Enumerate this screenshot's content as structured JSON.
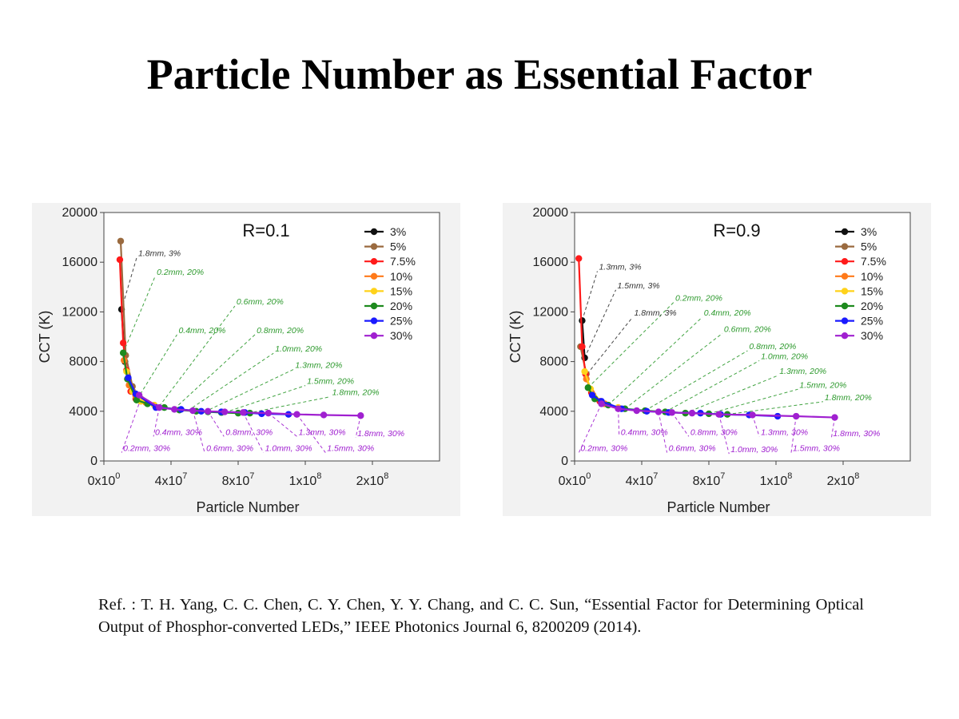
{
  "slide": {
    "title": "Particle Number as Essential Factor",
    "reference": "Ref. : T. H. Yang, C. C. Chen, C. Y. Chen, Y. Y. Chang, and C. C. Sun, “Essential Factor for Determining Optical Output of Phosphor-converted LEDs,” IEEE Photonics Journal 6, 8200209 (2014)."
  },
  "colors": {
    "3%": "#111111",
    "5%": "#9a6a3f",
    "7.5%": "#ff1a1a",
    "10%": "#ff7a1a",
    "15%": "#ffd21a",
    "20%": "#1e8a1e",
    "25%": "#1a1aff",
    "30%": "#a020d0",
    "label_black": "#333333",
    "label_green": "#2e9a2e",
    "label_purple": "#a020d0"
  },
  "chart_data": [
    {
      "type": "line",
      "title": "R=0.1",
      "xlabel": "Particle Number",
      "ylabel": "CCT (K)",
      "xlim": [
        0,
        200000000
      ],
      "ylim": [
        0,
        20000
      ],
      "xticks": [
        {
          "value": 0,
          "base": "0x10",
          "exp": "0"
        },
        {
          "value": 40000000,
          "base": "4x10",
          "exp": "7"
        },
        {
          "value": 80000000,
          "base": "8x10",
          "exp": "7"
        },
        {
          "value": 120000000,
          "base": "1x10",
          "exp": "8"
        },
        {
          "value": 160000000,
          "base": "2x10",
          "exp": "8"
        }
      ],
      "yticks": [
        "0",
        "4000",
        "8000",
        "12000",
        "16000",
        "20000"
      ],
      "legend_position": "top-right",
      "series": [
        {
          "name": "3%",
          "points": [
            [
              10500000,
              12200
            ],
            [
              12500000,
              8000
            ]
          ]
        },
        {
          "name": "5%",
          "points": [
            [
              10000000,
              17700
            ],
            [
              13000000,
              8500
            ],
            [
              17000000,
              6000
            ],
            [
              22000000,
              5000
            ]
          ]
        },
        {
          "name": "7.5%",
          "points": [
            [
              9500000,
              16200
            ],
            [
              11500000,
              9500
            ],
            [
              13500000,
              7300
            ],
            [
              16000000,
              5600
            ],
            [
              19000000,
              5000
            ]
          ]
        },
        {
          "name": "10%",
          "points": [
            [
              12000000,
              8100
            ],
            [
              15000000,
              6100
            ],
            [
              19000000,
              5200
            ],
            [
              25000000,
              4700
            ]
          ]
        },
        {
          "name": "15%",
          "points": [
            [
              13500000,
              7200
            ],
            [
              17000000,
              5600
            ],
            [
              22000000,
              4800
            ],
            [
              30000000,
              4500
            ]
          ]
        },
        {
          "name": "20%",
          "points": [
            [
              11500000,
              8700
            ],
            [
              14000000,
              6600
            ],
            [
              19500000,
              4900
            ],
            [
              26000000,
              4600
            ],
            [
              36000000,
              4300
            ],
            [
              45000000,
              4100
            ],
            [
              55000000,
              4000
            ],
            [
              62000000,
              3950
            ],
            [
              70000000,
              3900
            ],
            [
              80000000,
              3850
            ],
            [
              87000000,
              3850
            ]
          ]
        },
        {
          "name": "25%",
          "points": [
            [
              14500000,
              6700
            ],
            [
              19000000,
              5400
            ],
            [
              31000000,
              4300
            ],
            [
              46000000,
              4150
            ],
            [
              58000000,
              4000
            ],
            [
              70000000,
              3950
            ],
            [
              84000000,
              3900
            ],
            [
              94000000,
              3800
            ],
            [
              110000000,
              3750
            ]
          ]
        },
        {
          "name": "30%",
          "points": [
            [
              21000000,
              5300
            ],
            [
              33000000,
              4300
            ],
            [
              42000000,
              4150
            ],
            [
              53000000,
              4050
            ],
            [
              62000000,
              4000
            ],
            [
              72000000,
              3950
            ],
            [
              83000000,
              3900
            ],
            [
              98000000,
              3850
            ],
            [
              115000000,
              3750
            ],
            [
              131000000,
              3700
            ],
            [
              153000000,
              3650
            ]
          ]
        }
      ],
      "annotations": [
        {
          "text": "1.8mm, 3%",
          "color": "black",
          "at": [
            10500000,
            12200
          ],
          "label": [
            20500000,
            16500
          ]
        },
        {
          "text": "0.2mm, 20%",
          "color": "green",
          "at": [
            11500000,
            8700
          ],
          "label": [
            31500000,
            15000
          ]
        },
        {
          "text": "0.4mm, 20%",
          "color": "green",
          "at": [
            20000000,
            5000
          ],
          "label": [
            44500000,
            10300
          ]
        },
        {
          "text": "0.6mm, 20%",
          "color": "green",
          "at": [
            33000000,
            4400
          ],
          "label": [
            79000000,
            12600
          ]
        },
        {
          "text": "0.8mm, 20%",
          "color": "green",
          "at": [
            42000000,
            4200
          ],
          "label": [
            91000000,
            10300
          ]
        },
        {
          "text": "1.0mm, 20%",
          "color": "green",
          "at": [
            50000000,
            4050
          ],
          "label": [
            102000000,
            8800
          ]
        },
        {
          "text": "1.3mm, 20%",
          "color": "green",
          "at": [
            60000000,
            3950
          ],
          "label": [
            114000000,
            7500
          ]
        },
        {
          "text": "1.5mm, 20%",
          "color": "green",
          "at": [
            72000000,
            3900
          ],
          "label": [
            121000000,
            6200
          ]
        },
        {
          "text": "1.8mm, 20%",
          "color": "green",
          "at": [
            86000000,
            3850
          ],
          "label": [
            136000000,
            5300
          ]
        },
        {
          "text": "0.2mm, 30%",
          "color": "purple",
          "at": [
            22000000,
            5000
          ],
          "label": [
            11500000,
            800
          ]
        },
        {
          "text": "0.4mm, 30%",
          "color": "purple",
          "at": [
            33000000,
            4300
          ],
          "label": [
            30500000,
            2100
          ]
        },
        {
          "text": "0.6mm, 30%",
          "color": "purple",
          "at": [
            53000000,
            4050
          ],
          "label": [
            61000000,
            800
          ]
        },
        {
          "text": "0.8mm, 30%",
          "color": "purple",
          "at": [
            62000000,
            4000
          ],
          "label": [
            72500000,
            2100
          ]
        },
        {
          "text": "1.0mm, 30%",
          "color": "purple",
          "at": [
            83000000,
            3900
          ],
          "label": [
            96000000,
            800
          ]
        },
        {
          "text": "1.3mm, 30%",
          "color": "purple",
          "at": [
            98000000,
            3850
          ],
          "label": [
            116000000,
            2100
          ]
        },
        {
          "text": "1.5mm, 30%",
          "color": "purple",
          "at": [
            115000000,
            3750
          ],
          "label": [
            133000000,
            800
          ]
        },
        {
          "text": "1.8mm, 30%",
          "color": "purple",
          "at": [
            153000000,
            3650
          ],
          "label": [
            151000000,
            2000
          ]
        }
      ]
    },
    {
      "type": "line",
      "title": "R=0.9",
      "xlabel": "Particle Number",
      "ylabel": "CCT (K)",
      "xlim": [
        0,
        200000000
      ],
      "ylim": [
        0,
        20000
      ],
      "xticks": [
        {
          "value": 0,
          "base": "0x10",
          "exp": "0"
        },
        {
          "value": 40000000,
          "base": "4x10",
          "exp": "7"
        },
        {
          "value": 80000000,
          "base": "8x10",
          "exp": "7"
        },
        {
          "value": 120000000,
          "base": "1x10",
          "exp": "8"
        },
        {
          "value": 160000000,
          "base": "2x10",
          "exp": "8"
        }
      ],
      "yticks": [
        "0",
        "4000",
        "8000",
        "12000",
        "16000",
        "20000"
      ],
      "legend_position": "top-right",
      "series": [
        {
          "name": "3%",
          "points": [
            [
              4500000,
              11300
            ],
            [
              6000000,
              8300
            ]
          ]
        },
        {
          "name": "5%",
          "points": [
            [
              3500000,
              9200
            ],
            [
              7000000,
              7000
            ]
          ]
        },
        {
          "name": "7.5%",
          "points": [
            [
              2500000,
              16300
            ],
            [
              4500000,
              9200
            ],
            [
              6500000,
              7000
            ],
            [
              10000000,
              5500
            ],
            [
              15000000,
              4800
            ]
          ]
        },
        {
          "name": "10%",
          "points": [
            [
              7000000,
              6600
            ],
            [
              11000000,
              5300
            ],
            [
              18000000,
              4600
            ]
          ]
        },
        {
          "name": "15%",
          "points": [
            [
              6000000,
              7200
            ],
            [
              9500000,
              5800
            ],
            [
              16000000,
              4700
            ],
            [
              26000000,
              4300
            ]
          ]
        },
        {
          "name": "20%",
          "points": [
            [
              8000000,
              5900
            ],
            [
              12000000,
              5000
            ],
            [
              20000000,
              4500
            ],
            [
              30000000,
              4200
            ],
            [
              42000000,
              4050
            ],
            [
              54000000,
              3950
            ],
            [
              66000000,
              3850
            ],
            [
              80000000,
              3800
            ],
            [
              91000000,
              3750
            ]
          ]
        },
        {
          "name": "25%",
          "points": [
            [
              10500000,
              5300
            ],
            [
              16000000,
              4800
            ],
            [
              28000000,
              4200
            ],
            [
              43000000,
              4000
            ],
            [
              56000000,
              3900
            ],
            [
              75000000,
              3850
            ],
            [
              87000000,
              3750
            ],
            [
              104000000,
              3700
            ],
            [
              121000000,
              3600
            ]
          ]
        },
        {
          "name": "30%",
          "points": [
            [
              16000000,
              4600
            ],
            [
              26000000,
              4200
            ],
            [
              37000000,
              4050
            ],
            [
              50000000,
              3950
            ],
            [
              58000000,
              3900
            ],
            [
              70000000,
              3850
            ],
            [
              86000000,
              3750
            ],
            [
              106000000,
              3700
            ],
            [
              132000000,
              3600
            ],
            [
              155000000,
              3500
            ]
          ]
        }
      ],
      "annotations": [
        {
          "text": "1.3mm, 3%",
          "color": "black",
          "at": [
            4500000,
            11300
          ],
          "label": [
            14500000,
            15400
          ]
        },
        {
          "text": "1.5mm, 3%",
          "color": "black",
          "at": [
            6000000,
            8300
          ],
          "label": [
            25500000,
            13900
          ]
        },
        {
          "text": "1.8mm, 3%",
          "color": "black",
          "at": [
            7500000,
            7000
          ],
          "label": [
            35500000,
            11700
          ]
        },
        {
          "text": "0.2mm, 20%",
          "color": "green",
          "at": [
            8000000,
            5900
          ],
          "label": [
            60000000,
            12900
          ]
        },
        {
          "text": "0.4mm, 20%",
          "color": "green",
          "at": [
            20000000,
            4500
          ],
          "label": [
            77000000,
            11700
          ]
        },
        {
          "text": "0.6mm, 20%",
          "color": "green",
          "at": [
            30000000,
            4200
          ],
          "label": [
            89000000,
            10400
          ]
        },
        {
          "text": "0.8mm, 20%",
          "color": "green",
          "at": [
            42000000,
            4050
          ],
          "label": [
            104000000,
            9000
          ]
        },
        {
          "text": "1.0mm, 20%",
          "color": "green",
          "at": [
            54000000,
            3950
          ],
          "label": [
            111000000,
            8200
          ]
        },
        {
          "text": "1.3mm, 20%",
          "color": "green",
          "at": [
            66000000,
            3850
          ],
          "label": [
            122000000,
            7000
          ]
        },
        {
          "text": "1.5mm, 20%",
          "color": "green",
          "at": [
            80000000,
            3800
          ],
          "label": [
            134000000,
            5900
          ]
        },
        {
          "text": "1.8mm, 20%",
          "color": "green",
          "at": [
            91000000,
            3750
          ],
          "label": [
            149000000,
            4900
          ]
        },
        {
          "text": "0.2mm, 30%",
          "color": "purple",
          "at": [
            16000000,
            4600
          ],
          "label": [
            3500000,
            800
          ]
        },
        {
          "text": "0.4mm, 30%",
          "color": "purple",
          "at": [
            26000000,
            4200
          ],
          "label": [
            27500000,
            2100
          ]
        },
        {
          "text": "0.6mm, 30%",
          "color": "purple",
          "at": [
            50000000,
            3950
          ],
          "label": [
            56000000,
            800
          ]
        },
        {
          "text": "0.8mm, 30%",
          "color": "purple",
          "at": [
            58000000,
            3900
          ],
          "label": [
            69000000,
            2100
          ]
        },
        {
          "text": "1.0mm, 30%",
          "color": "purple",
          "at": [
            86000000,
            3750
          ],
          "label": [
            93000000,
            700
          ]
        },
        {
          "text": "1.3mm, 30%",
          "color": "purple",
          "at": [
            106000000,
            3700
          ],
          "label": [
            111000000,
            2100
          ]
        },
        {
          "text": "1.5mm, 30%",
          "color": "purple",
          "at": [
            132000000,
            3600
          ],
          "label": [
            130000000,
            800
          ]
        },
        {
          "text": "1.8mm, 30%",
          "color": "purple",
          "at": [
            155000000,
            3500
          ],
          "label": [
            154000000,
            2000
          ]
        }
      ]
    }
  ]
}
